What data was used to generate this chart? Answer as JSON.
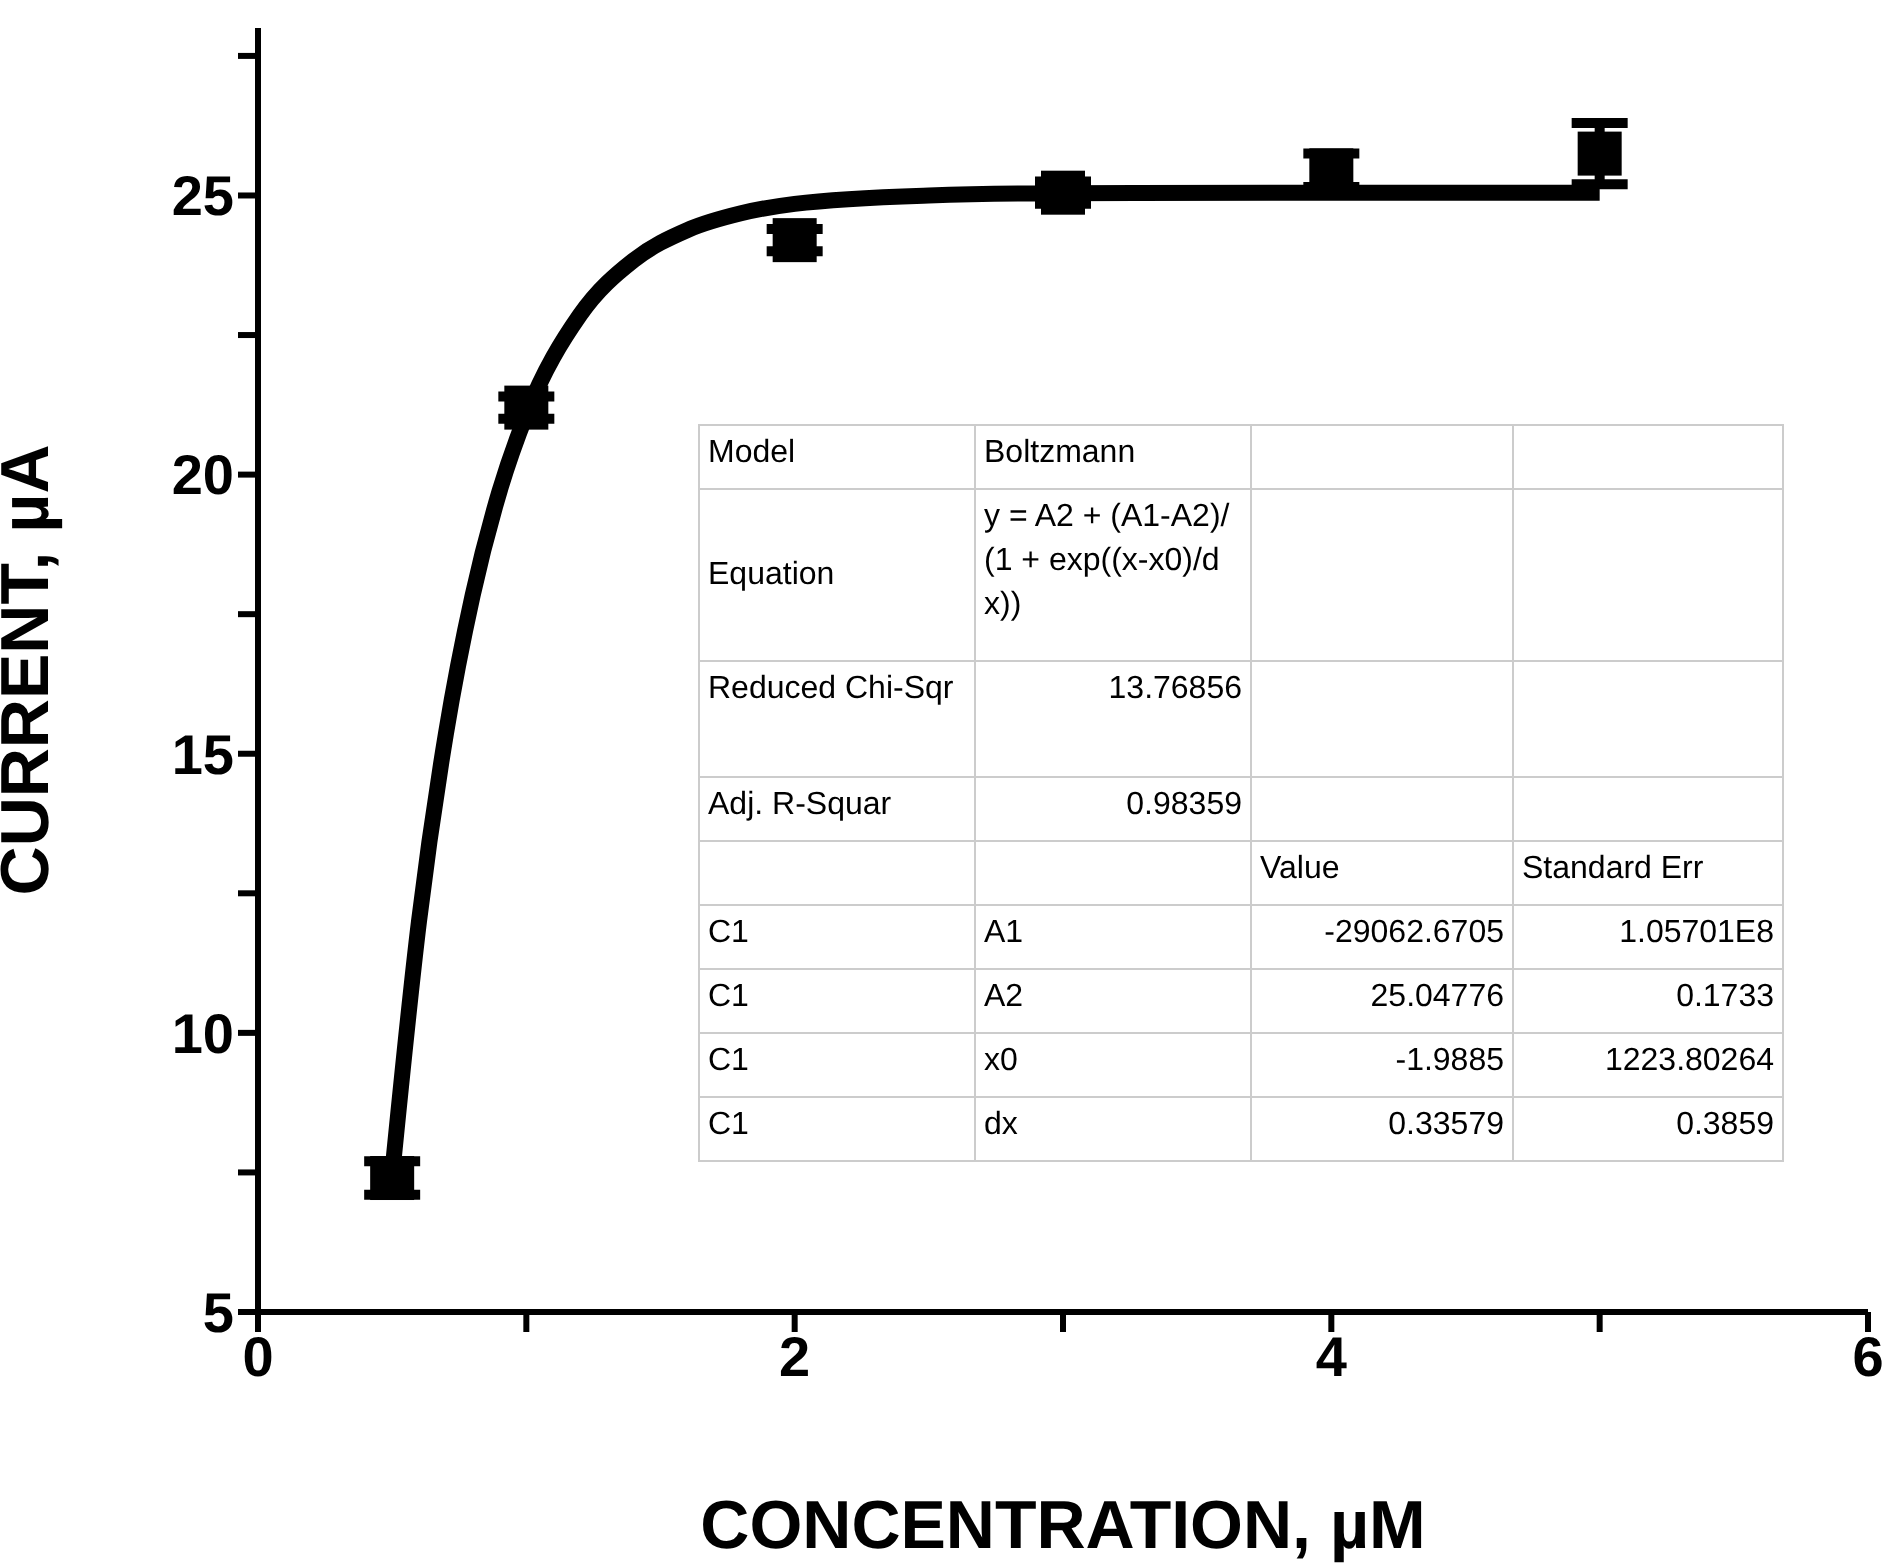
{
  "chart_data": {
    "type": "scatter",
    "xlabel": "CONCENTRATION, µM",
    "ylabel": "CURRENT, µA",
    "xlim": [
      0,
      6
    ],
    "ylim": [
      5,
      28
    ],
    "xticks": [
      0,
      {
        "value": 1,
        "label": null
      },
      2,
      {
        "value": 3,
        "label": null
      },
      4,
      {
        "value": 5,
        "label": null
      },
      6
    ],
    "yticks": [
      5,
      {
        "value": 7.5,
        "label": null
      },
      10,
      {
        "value": 12.5,
        "label": null
      },
      15,
      {
        "value": 17.5,
        "label": null
      },
      20,
      {
        "value": 22.5,
        "label": null
      },
      25,
      {
        "value": 27.5,
        "label": null
      }
    ],
    "marker": "square",
    "series": [
      {
        "type": "line",
        "color": "#000000",
        "x": [
          0.5,
          0.6,
          0.7,
          0.8,
          0.9,
          1.0,
          1.2,
          1.4,
          1.6,
          1.8,
          2.0,
          2.5,
          3.0,
          4.0,
          5.0
        ],
        "values": [
          7.47,
          12.0,
          15.35,
          17.84,
          19.7,
          21.08,
          22.86,
          23.84,
          24.38,
          24.68,
          24.85,
          25.0,
          25.04,
          25.05,
          25.05
        ],
        "marker": "none"
      },
      {
        "color": "#000000",
        "x": [
          0.5,
          1,
          2,
          3,
          4,
          5
        ],
        "values": [
          7.4,
          21.2,
          24.2,
          25.05,
          25.45,
          25.75
        ],
        "errors": [
          0.3,
          0.2,
          0.2,
          0.2,
          0.3,
          0.55
        ]
      }
    ],
    "annotations": [
      "Model",
      "Boltzmann",
      null,
      null,
      "Equation",
      "y = A2 + (A1-A2)/(1 + exp((x-x0)/dx))",
      null,
      null,
      "Reduced Chi-Sqr",
      "13.76856",
      null,
      null,
      "Adj. R-Squar",
      "0.98359",
      null,
      null,
      null,
      null,
      "Value",
      "Standard Err",
      "C1",
      "A1",
      "-29062.6705",
      "1.05701E8",
      "C1",
      "A2",
      "25.04776",
      "0.1733",
      "C1",
      "x0",
      "-1.9885",
      "1223.80264",
      "C1",
      "dx",
      "0.33579",
      "0.3859"
    ]
  }
}
